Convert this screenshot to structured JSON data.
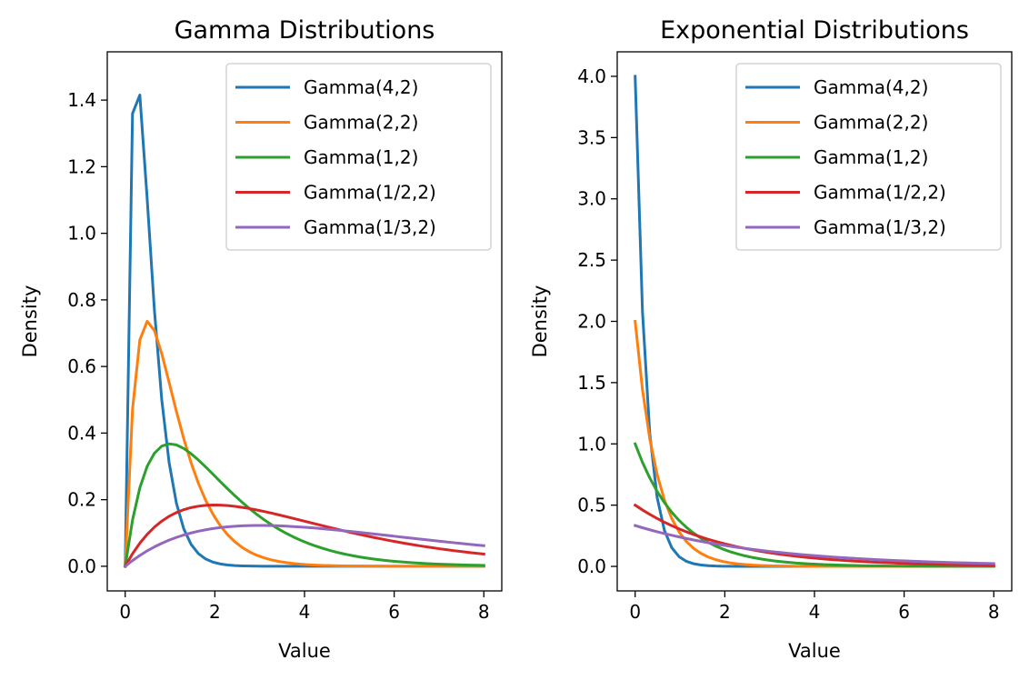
{
  "figure": {
    "background": "#ffffff"
  },
  "chart_data": [
    {
      "type": "line",
      "title": "Gamma Distributions",
      "xlabel": "Value",
      "ylabel": "Density",
      "xlim": [
        -0.4,
        8.4
      ],
      "ylim": [
        -0.074,
        1.545
      ],
      "xticks": [
        0,
        2,
        4,
        6,
        8
      ],
      "xtick_labels": [
        "0",
        "2",
        "4",
        "6",
        "8"
      ],
      "yticks": [
        0.0,
        0.2,
        0.4,
        0.6,
        0.8,
        1.0,
        1.2,
        1.4
      ],
      "ytick_labels": [
        "0.0",
        "0.2",
        "0.4",
        "0.6",
        "0.8",
        "1.0",
        "1.2",
        "1.4"
      ],
      "grid": false,
      "legend": "top-right",
      "x_range": [
        0,
        8
      ],
      "sample_points": 50,
      "series": [
        {
          "name": "Gamma(4,2)",
          "color": "#1f77b4",
          "distribution": "gamma",
          "shape": 2,
          "rate": 4
        },
        {
          "name": "Gamma(2,2)",
          "color": "#ff7f0e",
          "distribution": "gamma",
          "shape": 2,
          "rate": 2
        },
        {
          "name": "Gamma(1,2)",
          "color": "#2ca02c",
          "distribution": "gamma",
          "shape": 2,
          "rate": 1
        },
        {
          "name": "Gamma(1/2,2)",
          "color": "#d62728",
          "distribution": "gamma",
          "shape": 2,
          "rate": 0.5
        },
        {
          "name": "Gamma(1/3,2)",
          "color": "#9467bd",
          "distribution": "gamma",
          "shape": 2,
          "rate": 0.3333333
        }
      ]
    },
    {
      "type": "line",
      "title": "Exponential Distributions",
      "xlabel": "Value",
      "ylabel": "Density",
      "xlim": [
        -0.4,
        8.4
      ],
      "ylim": [
        -0.2,
        4.2
      ],
      "xticks": [
        0,
        2,
        4,
        6,
        8
      ],
      "xtick_labels": [
        "0",
        "2",
        "4",
        "6",
        "8"
      ],
      "yticks": [
        0.0,
        0.5,
        1.0,
        1.5,
        2.0,
        2.5,
        3.0,
        3.5,
        4.0
      ],
      "ytick_labels": [
        "0.0",
        "0.5",
        "1.0",
        "1.5",
        "2.0",
        "2.5",
        "3.0",
        "3.5",
        "4.0"
      ],
      "grid": false,
      "legend": "top-right",
      "x_range": [
        0,
        8
      ],
      "sample_points": 50,
      "series": [
        {
          "name": "Gamma(4,2)",
          "color": "#1f77b4",
          "distribution": "exponential",
          "rate": 4
        },
        {
          "name": "Gamma(2,2)",
          "color": "#ff7f0e",
          "distribution": "exponential",
          "rate": 2
        },
        {
          "name": "Gamma(1,2)",
          "color": "#2ca02c",
          "distribution": "exponential",
          "rate": 1
        },
        {
          "name": "Gamma(1/2,2)",
          "color": "#d62728",
          "distribution": "exponential",
          "rate": 0.5
        },
        {
          "name": "Gamma(1/3,2)",
          "color": "#9467bd",
          "distribution": "exponential",
          "rate": 0.3333333
        }
      ]
    }
  ]
}
